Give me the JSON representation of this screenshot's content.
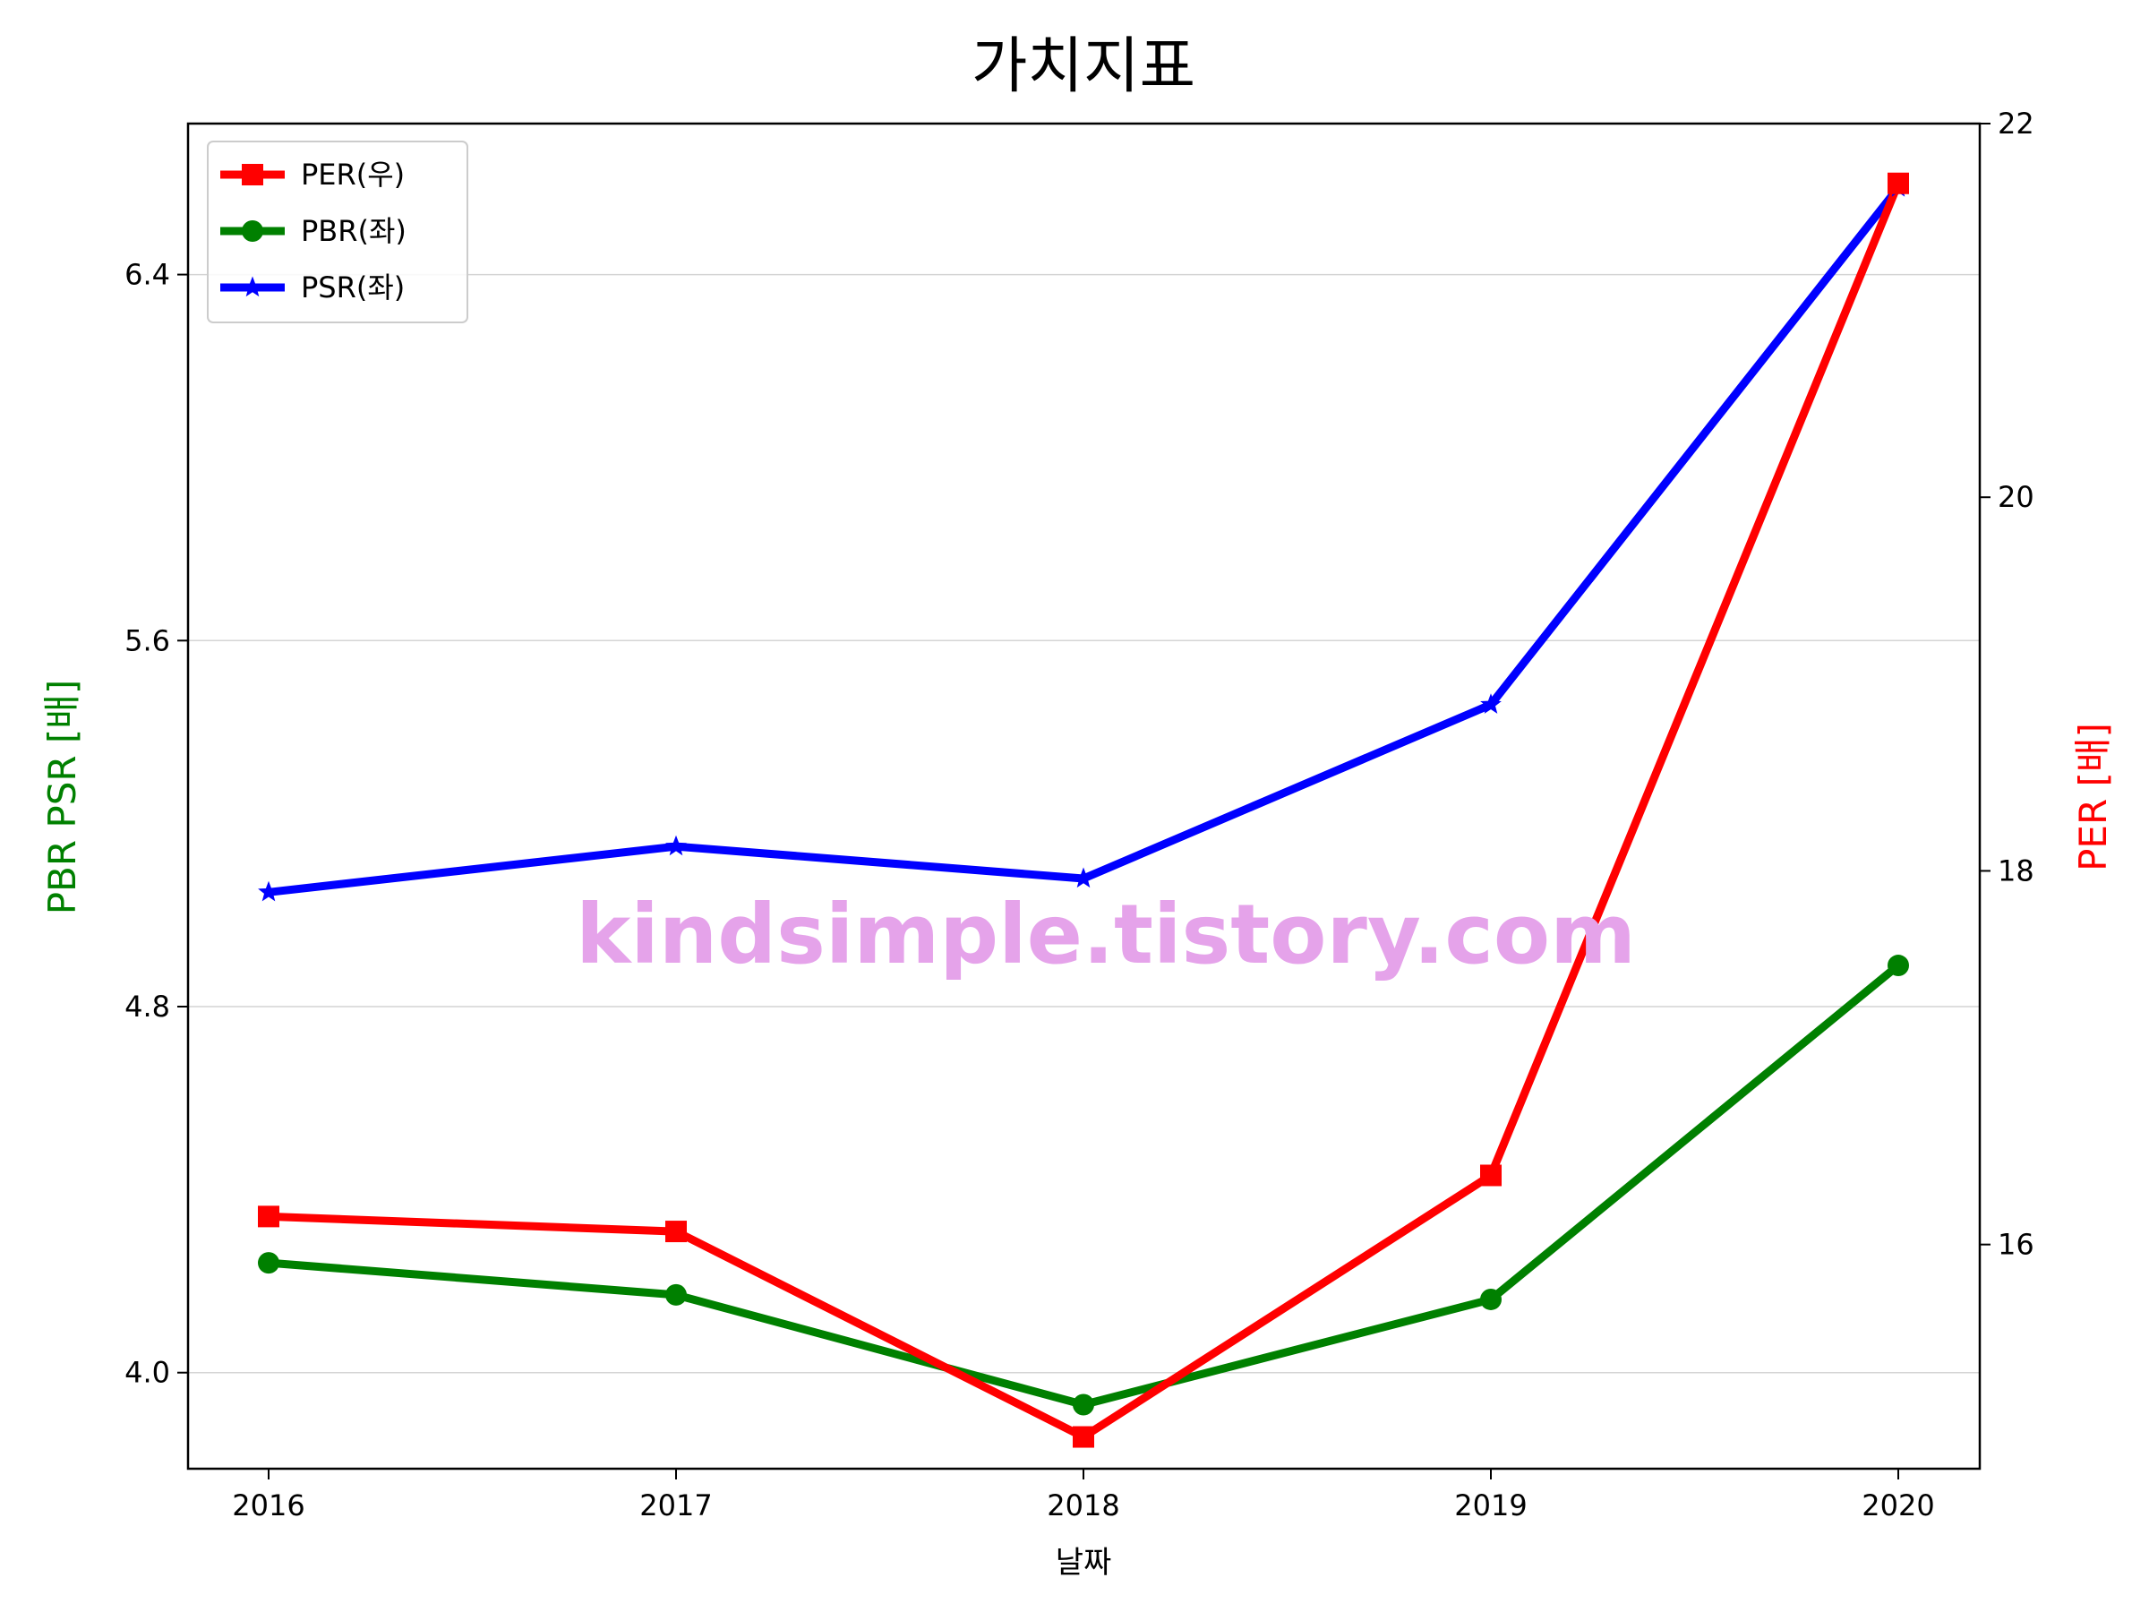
{
  "chart_data": {
    "type": "line",
    "title": "가치지표",
    "xlabel": "날짜",
    "ylabel_left": "PBR PSR [배]",
    "ylabel_right": "PER [배]",
    "categories": [
      "2016",
      "2017",
      "2018",
      "2019",
      "2020"
    ],
    "left_axis": {
      "range": [
        3.79,
        6.73
      ],
      "ticks": [
        "4.0",
        "4.8",
        "5.6",
        "6.4"
      ],
      "tick_values": [
        4.0,
        4.8,
        5.6,
        6.4
      ],
      "grid": true
    },
    "right_axis": {
      "range": [
        14.8,
        22.0
      ],
      "ticks": [
        "16",
        "18",
        "20",
        "22"
      ],
      "tick_values": [
        16,
        18,
        20,
        22
      ]
    },
    "series": [
      {
        "name": "PER(우)",
        "axis": "right",
        "color": "#ff0000",
        "marker": "square",
        "values": [
          16.15,
          16.07,
          14.97,
          16.37,
          21.68
        ]
      },
      {
        "name": "PBR(좌)",
        "axis": "left",
        "color": "#008000",
        "marker": "circle",
        "values": [
          4.24,
          4.17,
          3.93,
          4.16,
          4.89
        ]
      },
      {
        "name": "PSR(좌)",
        "axis": "left",
        "color": "#0000ff",
        "marker": "star",
        "values": [
          5.05,
          5.15,
          5.08,
          5.46,
          6.59
        ]
      }
    ],
    "legend_position": "top-left",
    "watermark": "kindsimple.tistory.com",
    "watermark_color": "#e5a3ea"
  }
}
